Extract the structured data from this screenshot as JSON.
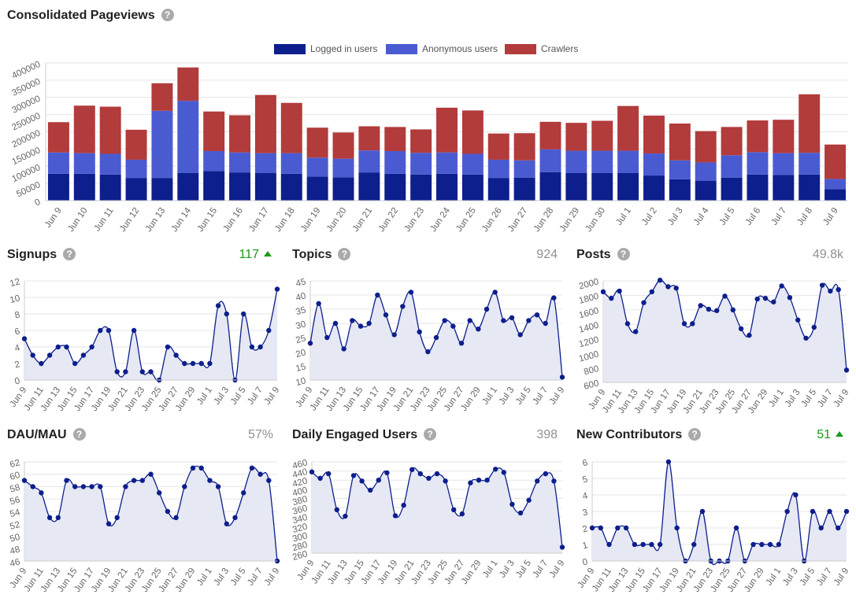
{
  "main_chart": {
    "title": "Consolidated Pageviews",
    "legend": [
      {
        "label": "Logged in users",
        "color": "#0d1f8c"
      },
      {
        "label": "Anonymous users",
        "color": "#4a5bd1"
      },
      {
        "label": "Crawlers",
        "color": "#b23b3b"
      }
    ]
  },
  "panels": [
    {
      "title": "Signups",
      "metric": "117",
      "trend": "up"
    },
    {
      "title": "Topics",
      "metric": "924",
      "trend": ""
    },
    {
      "title": "Posts",
      "metric": "49.8k",
      "trend": ""
    },
    {
      "title": "DAU/MAU",
      "metric": "57%",
      "trend": ""
    },
    {
      "title": "Daily Engaged Users",
      "metric": "398",
      "trend": ""
    },
    {
      "title": "New Contributors",
      "metric": "51",
      "trend": "up"
    }
  ],
  "colors": {
    "grid": "#e6e6e6",
    "line": "#0d1f8c",
    "area": "#e6e8f4",
    "up": "#1a9a1a"
  },
  "chart_data": [
    {
      "type": "bar",
      "stacked": true,
      "categories": [
        "Jun 9",
        "Jun 10",
        "Jun 11",
        "Jun 12",
        "Jun 13",
        "Jun 14",
        "Jun 15",
        "Jun 16",
        "Jun 17",
        "Jun 18",
        "Jun 19",
        "Jun 20",
        "Jun 21",
        "Jun 22",
        "Jun 23",
        "Jun 24",
        "Jun 25",
        "Jun 26",
        "Jun 27",
        "Jun 28",
        "Jun 29",
        "Jun 30",
        "Jul 1",
        "Jul 2",
        "Jul 3",
        "Jul 4",
        "Jul 5",
        "Jul 6",
        "Jul 7",
        "Jul 8",
        "Jul 9"
      ],
      "series": [
        {
          "name": "Logged in users",
          "values": [
            78000,
            78000,
            76000,
            66000,
            66000,
            80000,
            86000,
            82000,
            80000,
            78000,
            70000,
            68000,
            82000,
            78000,
            76000,
            78000,
            76000,
            66000,
            67000,
            83000,
            80000,
            80000,
            80000,
            73000,
            62000,
            58000,
            67000,
            76000,
            75000,
            76000,
            33000
          ]
        },
        {
          "name": "Anonymous users",
          "values": [
            62000,
            60000,
            60000,
            53000,
            195000,
            210000,
            58000,
            58000,
            58000,
            60000,
            55000,
            54000,
            64000,
            66000,
            63000,
            62000,
            60000,
            53000,
            50000,
            66000,
            65000,
            65000,
            65000,
            64000,
            55000,
            53000,
            65000,
            65000,
            63000,
            63000,
            30000
          ]
        },
        {
          "name": "Crawlers",
          "values": [
            88000,
            138000,
            137000,
            87000,
            80000,
            97000,
            115000,
            108000,
            169000,
            146000,
            87000,
            76000,
            70000,
            70000,
            68000,
            130000,
            126000,
            76000,
            79000,
            80000,
            81000,
            87000,
            130000,
            110000,
            107000,
            91000,
            82000,
            92000,
            97000,
            170000,
            100000
          ]
        }
      ],
      "ylim": [
        0,
        400000
      ],
      "yticks": [
        0,
        50000,
        100000,
        150000,
        200000,
        250000,
        300000,
        350000,
        400000
      ],
      "grid": true,
      "legend": "top"
    },
    {
      "type": "line",
      "title": "Signups",
      "x": [
        "Jun 9",
        "Jun 10",
        "Jun 11",
        "Jun 12",
        "Jun 13",
        "Jun 14",
        "Jun 15",
        "Jun 16",
        "Jun 17",
        "Jun 18",
        "Jun 19",
        "Jun 20",
        "Jun 21",
        "Jun 22",
        "Jun 23",
        "Jun 24",
        "Jun 25",
        "Jun 26",
        "Jun 27",
        "Jun 28",
        "Jun 29",
        "Jun 30",
        "Jul 1",
        "Jul 2",
        "Jul 3",
        "Jul 4",
        "Jul 5",
        "Jul 6",
        "Jul 7",
        "Jul 8",
        "Jul 9"
      ],
      "xticks": [
        "Jun 9",
        "Jun 11",
        "Jun 13",
        "Jun 15",
        "Jun 17",
        "Jun 19",
        "Jun 21",
        "Jun 23",
        "Jun 25",
        "Jun 27",
        "Jun 29",
        "Jul 1",
        "Jul 3",
        "Jul 5",
        "Jul 7",
        "Jul 9"
      ],
      "values": [
        5,
        3,
        2,
        3,
        4,
        4,
        2,
        3,
        4,
        6,
        6,
        1,
        1,
        6,
        1,
        1,
        0,
        4,
        3,
        2,
        2,
        2,
        2,
        9,
        8,
        0,
        8,
        4,
        4,
        6,
        11
      ],
      "ylim": [
        0,
        12
      ],
      "yticks": [
        0,
        2,
        4,
        6,
        8,
        10,
        12
      ]
    },
    {
      "type": "line",
      "title": "Topics",
      "x": [
        "Jun 9",
        "Jun 10",
        "Jun 11",
        "Jun 12",
        "Jun 13",
        "Jun 14",
        "Jun 15",
        "Jun 16",
        "Jun 17",
        "Jun 18",
        "Jun 19",
        "Jun 20",
        "Jun 21",
        "Jun 22",
        "Jun 23",
        "Jun 24",
        "Jun 25",
        "Jun 26",
        "Jun 27",
        "Jun 28",
        "Jun 29",
        "Jun 30",
        "Jul 1",
        "Jul 2",
        "Jul 3",
        "Jul 4",
        "Jul 5",
        "Jul 6",
        "Jul 7",
        "Jul 8",
        "Jul 9"
      ],
      "xticks": [
        "Jun 9",
        "Jun 11",
        "Jun 13",
        "Jun 15",
        "Jun 17",
        "Jun 19",
        "Jun 21",
        "Jun 23",
        "Jun 25",
        "Jun 27",
        "Jun 29",
        "Jul 1",
        "Jul 3",
        "Jul 5",
        "Jul 7",
        "Jul 9"
      ],
      "values": [
        23,
        37,
        25,
        30,
        21,
        31,
        29,
        30,
        40,
        33,
        26,
        36,
        41,
        27,
        20,
        25,
        31,
        29,
        23,
        31,
        28,
        35,
        41,
        31,
        32,
        26,
        31,
        33,
        30,
        39,
        11
      ],
      "ylim": [
        10,
        45
      ],
      "yticks": [
        10,
        15,
        20,
        25,
        30,
        35,
        40,
        45
      ]
    },
    {
      "type": "line",
      "title": "Posts",
      "x": [
        "Jun 9",
        "Jun 10",
        "Jun 11",
        "Jun 12",
        "Jun 13",
        "Jun 14",
        "Jun 15",
        "Jun 16",
        "Jun 17",
        "Jun 18",
        "Jun 19",
        "Jun 20",
        "Jun 21",
        "Jun 22",
        "Jun 23",
        "Jun 24",
        "Jun 25",
        "Jun 26",
        "Jun 27",
        "Jun 28",
        "Jun 29",
        "Jun 30",
        "Jul 1",
        "Jul 2",
        "Jul 3",
        "Jul 4",
        "Jul 5",
        "Jul 6",
        "Jul 7",
        "Jul 8",
        "Jul 9"
      ],
      "xticks": [
        "Jun 9",
        "Jun 11",
        "Jun 13",
        "Jun 15",
        "Jun 17",
        "Jun 19",
        "Jun 21",
        "Jun 23",
        "Jun 25",
        "Jun 27",
        "Jun 29",
        "Jul 1",
        "Jul 3",
        "Jul 5",
        "Jul 7",
        "Jul 9"
      ],
      "values": [
        1850,
        1760,
        1860,
        1410,
        1300,
        1700,
        1850,
        2010,
        1920,
        1900,
        1410,
        1410,
        1660,
        1610,
        1590,
        1790,
        1600,
        1340,
        1250,
        1750,
        1760,
        1710,
        1930,
        1770,
        1460,
        1210,
        1360,
        1940,
        1860,
        1880,
        770
      ],
      "ylim": [
        600,
        2000
      ],
      "yticks": [
        600,
        800,
        1000,
        1200,
        1400,
        1600,
        1800,
        2000
      ]
    },
    {
      "type": "line",
      "title": "DAU/MAU",
      "x": [
        "Jun 9",
        "Jun 10",
        "Jun 11",
        "Jun 12",
        "Jun 13",
        "Jun 14",
        "Jun 15",
        "Jun 16",
        "Jun 17",
        "Jun 18",
        "Jun 19",
        "Jun 20",
        "Jun 21",
        "Jun 22",
        "Jun 23",
        "Jun 24",
        "Jun 25",
        "Jun 26",
        "Jun 27",
        "Jun 28",
        "Jun 29",
        "Jun 30",
        "Jul 1",
        "Jul 2",
        "Jul 3",
        "Jul 4",
        "Jul 5",
        "Jul 6",
        "Jul 7",
        "Jul 8",
        "Jul 9"
      ],
      "xticks": [
        "Jun 9",
        "Jun 11",
        "Jun 13",
        "Jun 15",
        "Jun 17",
        "Jun 19",
        "Jun 21",
        "Jun 23",
        "Jun 25",
        "Jun 27",
        "Jun 29",
        "Jul 1",
        "Jul 3",
        "Jul 5",
        "Jul 7",
        "Jul 9"
      ],
      "values": [
        59,
        58,
        57,
        53,
        53,
        59,
        58,
        58,
        58,
        58,
        52,
        53,
        58,
        59,
        59,
        60,
        57,
        54,
        53,
        58,
        61,
        61,
        59,
        58,
        52,
        53,
        57,
        61,
        60,
        59,
        46
      ],
      "ylim": [
        46,
        62
      ],
      "yticks": [
        46,
        48,
        50,
        52,
        54,
        56,
        58,
        60,
        62
      ]
    },
    {
      "type": "line",
      "title": "Daily Engaged Users",
      "x": [
        "Jun 9",
        "Jun 10",
        "Jun 11",
        "Jun 12",
        "Jun 13",
        "Jun 14",
        "Jun 15",
        "Jun 16",
        "Jun 17",
        "Jun 18",
        "Jun 19",
        "Jun 20",
        "Jun 21",
        "Jun 22",
        "Jun 23",
        "Jun 24",
        "Jun 25",
        "Jun 26",
        "Jun 27",
        "Jun 28",
        "Jun 29",
        "Jun 30",
        "Jul 1",
        "Jul 2",
        "Jul 3",
        "Jul 4",
        "Jul 5",
        "Jul 6",
        "Jul 7",
        "Jul 8",
        "Jul 9"
      ],
      "xticks": [
        "Jun 9",
        "Jun 11",
        "Jun 13",
        "Jun 15",
        "Jun 17",
        "Jun 19",
        "Jun 21",
        "Jun 23",
        "Jun 25",
        "Jun 27",
        "Jun 29",
        "Jul 1",
        "Jul 3",
        "Jul 5",
        "Jul 7",
        "Jul 9"
      ],
      "values": [
        438,
        424,
        434,
        355,
        341,
        430,
        418,
        398,
        420,
        436,
        342,
        365,
        443,
        434,
        424,
        434,
        418,
        355,
        346,
        414,
        420,
        420,
        444,
        437,
        367,
        348,
        376,
        418,
        434,
        418,
        273
      ],
      "ylim": [
        260,
        460
      ],
      "yticks": [
        260,
        280,
        300,
        320,
        340,
        360,
        380,
        400,
        420,
        440,
        460
      ]
    },
    {
      "type": "line",
      "title": "New Contributors",
      "x": [
        "Jun 9",
        "Jun 10",
        "Jun 11",
        "Jun 12",
        "Jun 13",
        "Jun 14",
        "Jun 15",
        "Jun 16",
        "Jun 17",
        "Jun 18",
        "Jun 19",
        "Jun 20",
        "Jun 21",
        "Jun 22",
        "Jun 23",
        "Jun 24",
        "Jun 25",
        "Jun 26",
        "Jun 27",
        "Jun 28",
        "Jun 29",
        "Jun 30",
        "Jul 1",
        "Jul 2",
        "Jul 3",
        "Jul 4",
        "Jul 5",
        "Jul 6",
        "Jul 7",
        "Jul 8",
        "Jul 9"
      ],
      "xticks": [
        "Jun 9",
        "Jun 11",
        "Jun 13",
        "Jun 15",
        "Jun 17",
        "Jun 19",
        "Jun 21",
        "Jun 23",
        "Jun 25",
        "Jun 27",
        "Jun 29",
        "Jul 1",
        "Jul 3",
        "Jul 5",
        "Jul 7",
        "Jul 9"
      ],
      "values": [
        2,
        2,
        1,
        2,
        2,
        1,
        1,
        1,
        1,
        6,
        2,
        0,
        1,
        3,
        0,
        0,
        0,
        2,
        0,
        1,
        1,
        1,
        1,
        3,
        4,
        0,
        3,
        2,
        3,
        2,
        3
      ],
      "ylim": [
        0,
        6
      ],
      "yticks": [
        0,
        1,
        2,
        3,
        4,
        5,
        6
      ]
    }
  ]
}
